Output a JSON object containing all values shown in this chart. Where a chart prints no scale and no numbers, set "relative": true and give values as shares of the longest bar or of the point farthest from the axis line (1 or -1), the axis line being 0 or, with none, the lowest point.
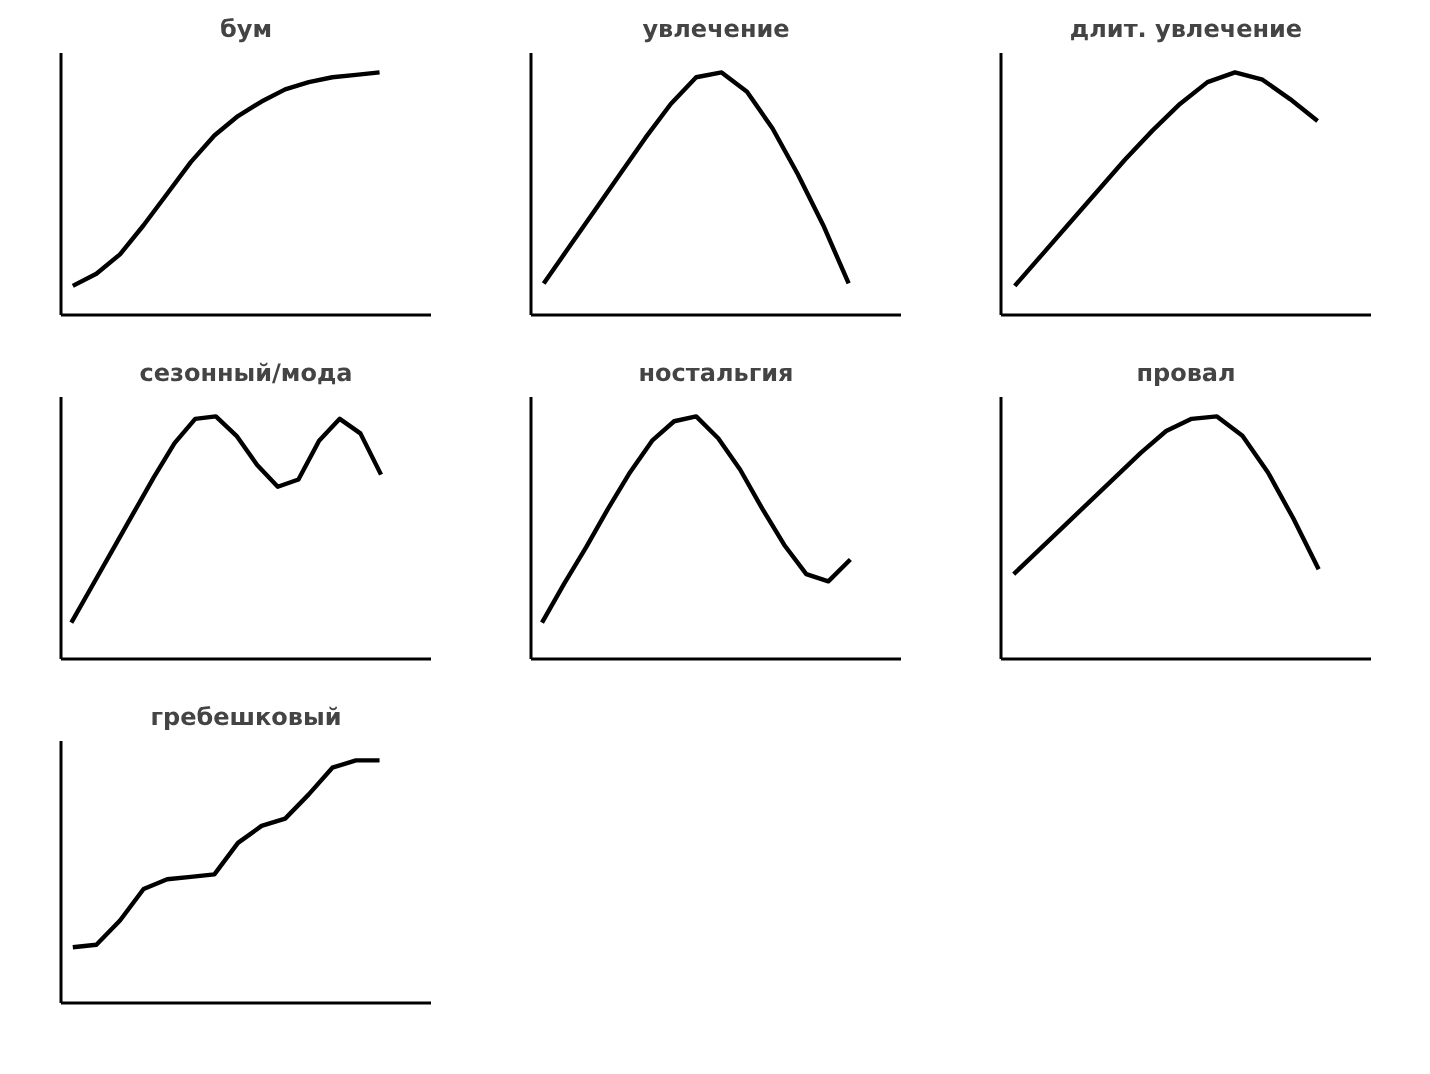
{
  "chart_data": [
    {
      "type": "line",
      "title": "бум",
      "relative": true,
      "categories": [
        null,
        null,
        null,
        null,
        null,
        null,
        null,
        null,
        null,
        null,
        null,
        null,
        null,
        null
      ],
      "series": [
        {
          "color": "#000000",
          "values": [
            0.12,
            0.17,
            0.25,
            0.37,
            0.5,
            0.63,
            0.74,
            0.82,
            0.88,
            0.93,
            0.96,
            0.98,
            0.99,
            1.0
          ]
        }
      ]
    },
    {
      "type": "line",
      "title": "увлечение",
      "relative": true,
      "categories": [
        null,
        null,
        null,
        null,
        null,
        null,
        null,
        null,
        null,
        null,
        null,
        null,
        null
      ],
      "series": [
        {
          "color": "#000000",
          "values": [
            0.13,
            0.28,
            0.43,
            0.58,
            0.73,
            0.87,
            0.98,
            1.0,
            0.92,
            0.77,
            0.58,
            0.37,
            0.13
          ]
        }
      ]
    },
    {
      "type": "line",
      "title": "длит. увлечение",
      "relative": true,
      "categories": [
        null,
        null,
        null,
        null,
        null,
        null,
        null,
        null,
        null,
        null,
        null,
        null
      ],
      "series": [
        {
          "color": "#000000",
          "values": [
            0.12,
            0.25,
            0.38,
            0.51,
            0.64,
            0.76,
            0.87,
            0.96,
            1.0,
            0.97,
            0.89,
            0.8
          ]
        }
      ]
    },
    {
      "type": "line",
      "title": "сезонный/мода",
      "relative": true,
      "categories": [
        null,
        null,
        null,
        null,
        null,
        null,
        null,
        null,
        null,
        null,
        null,
        null,
        null,
        null,
        null,
        null
      ],
      "series": [
        {
          "color": "#000000",
          "values": [
            0.15,
            0.3,
            0.45,
            0.6,
            0.75,
            0.89,
            0.99,
            1.0,
            0.92,
            0.8,
            0.71,
            0.74,
            0.9,
            0.99,
            0.93,
            0.76
          ]
        }
      ]
    },
    {
      "type": "line",
      "title": "ностальгия",
      "relative": true,
      "categories": [
        null,
        null,
        null,
        null,
        null,
        null,
        null,
        null,
        null,
        null,
        null,
        null,
        null,
        null,
        null
      ],
      "series": [
        {
          "color": "#000000",
          "values": [
            0.15,
            0.31,
            0.46,
            0.62,
            0.77,
            0.9,
            0.98,
            1.0,
            0.91,
            0.78,
            0.62,
            0.47,
            0.35,
            0.32,
            0.41
          ]
        }
      ]
    },
    {
      "type": "line",
      "title": "провал",
      "relative": true,
      "categories": [
        null,
        null,
        null,
        null,
        null,
        null,
        null,
        null,
        null,
        null,
        null,
        null,
        null
      ],
      "series": [
        {
          "color": "#000000",
          "values": [
            0.35,
            0.45,
            0.55,
            0.65,
            0.75,
            0.85,
            0.94,
            0.99,
            1.0,
            0.92,
            0.77,
            0.58,
            0.37
          ]
        }
      ]
    },
    {
      "type": "line",
      "title": "гребешковый",
      "relative": true,
      "categories": [
        null,
        null,
        null,
        null,
        null,
        null,
        null,
        null,
        null,
        null,
        null,
        null,
        null,
        null
      ],
      "series": [
        {
          "color": "#000000",
          "values": [
            0.23,
            0.24,
            0.34,
            0.47,
            0.51,
            0.52,
            0.53,
            0.66,
            0.73,
            0.76,
            0.86,
            0.97,
            1.0,
            1.0
          ]
        }
      ]
    }
  ]
}
